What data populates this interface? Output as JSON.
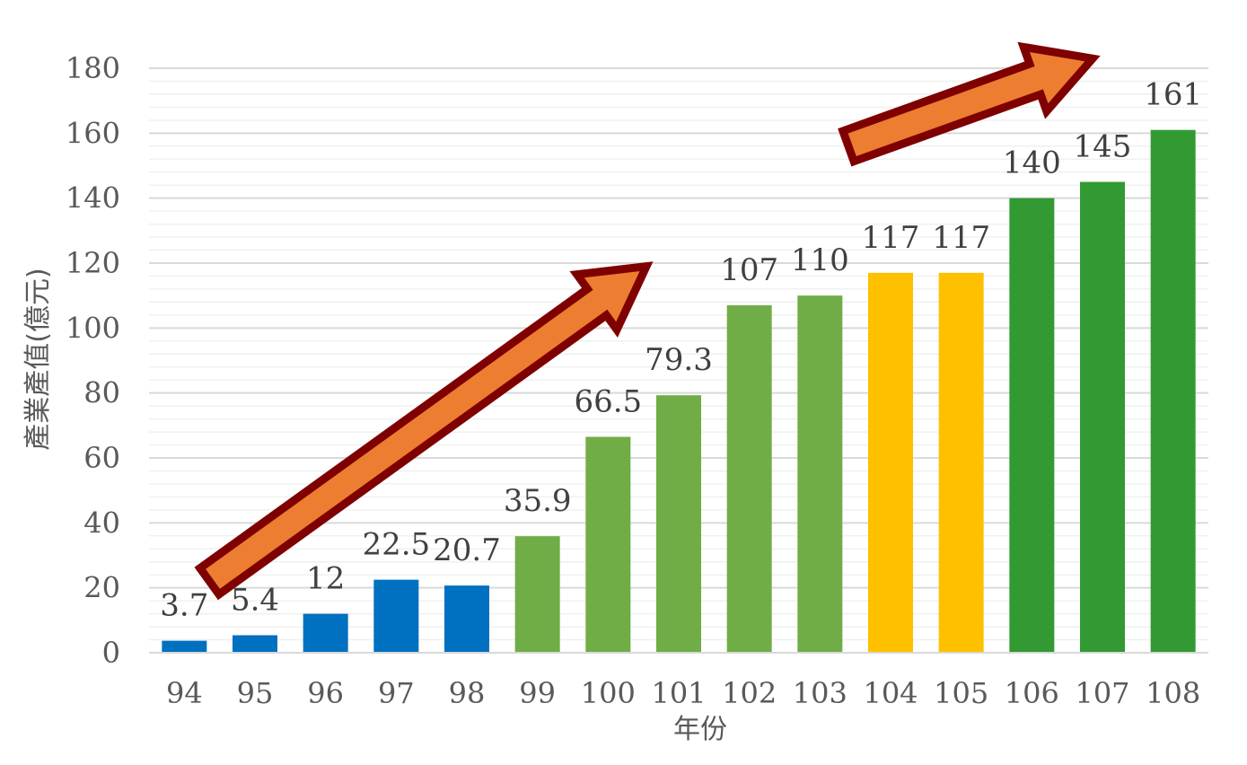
{
  "chart_data": {
    "type": "bar",
    "title": "",
    "xlabel": "年份",
    "ylabel": "產業產值(億元)",
    "categories": [
      "94",
      "95",
      "96",
      "97",
      "98",
      "99",
      "100",
      "101",
      "102",
      "103",
      "104",
      "105",
      "106",
      "107",
      "108"
    ],
    "values": [
      3.7,
      5.4,
      12,
      22.5,
      20.7,
      35.9,
      66.5,
      79.3,
      107,
      110,
      117,
      117,
      140,
      145,
      161
    ],
    "data_labels": [
      "3.7",
      "5.4",
      "12",
      "22.5",
      "20.7",
      "35.9",
      "66.5",
      "79.3",
      "107",
      "110",
      "117",
      "117",
      "140",
      "145",
      "161"
    ],
    "bar_colors": [
      "#0070c0",
      "#0070c0",
      "#0070c0",
      "#0070c0",
      "#0070c0",
      "#70ad47",
      "#70ad47",
      "#70ad47",
      "#70ad47",
      "#70ad47",
      "#ffc000",
      "#ffc000",
      "#339933",
      "#339933",
      "#339933"
    ],
    "first_label_color": "#002060",
    "ylim": [
      0,
      180
    ],
    "yticks": [
      0,
      20,
      40,
      60,
      80,
      100,
      120,
      140,
      160,
      180
    ],
    "minor_step": 4,
    "grid": true,
    "legend": "none",
    "annotations": [
      {
        "type": "trend-arrow",
        "from_category": "94",
        "to_category": "101",
        "fill": "#ed7d31",
        "stroke": "#7f0000"
      },
      {
        "type": "trend-arrow",
        "from_category": "104",
        "to_category": "107",
        "fill": "#ed7d31",
        "stroke": "#7f0000"
      }
    ]
  }
}
